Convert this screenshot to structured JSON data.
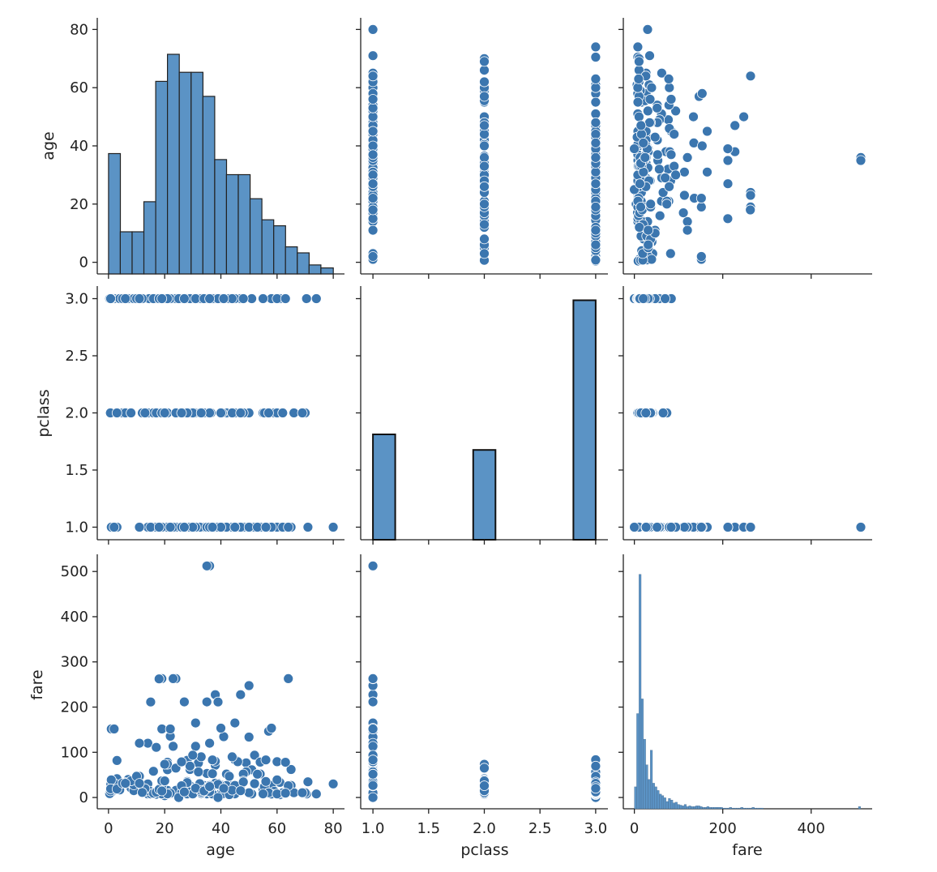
{
  "chart_data": {
    "type": "pairplot",
    "title": "",
    "variables": [
      "age",
      "pclass",
      "fare"
    ],
    "marker_color": "#3b76af",
    "hist_fill": "#5b93c5",
    "hist_edge": "#222222",
    "axes": {
      "age": {
        "label": "age",
        "range": [
          -4,
          84
        ],
        "ticks": [
          0,
          20,
          40,
          60,
          80
        ],
        "tick_labels": [
          "0",
          "20",
          "40",
          "60",
          "80"
        ]
      },
      "pclass": {
        "label": "pclass",
        "range": [
          0.89,
          3.11
        ],
        "ticks": [
          1.0,
          1.5,
          2.0,
          2.5,
          3.0
        ],
        "tick_labels": [
          "1.0",
          "1.5",
          "2.0",
          "2.5",
          "3.0"
        ]
      },
      "fare": {
        "label": "fare",
        "range": [
          -25,
          538
        ],
        "ticks": [
          0,
          100,
          200,
          300,
          400,
          500
        ],
        "tick_labels": [
          "0",
          "100",
          "200",
          "300",
          "400",
          "500"
        ],
        "x_ticks": [
          0,
          200,
          400
        ],
        "x_tick_labels": [
          "0",
          "200",
          "400"
        ]
      }
    },
    "hist_age": {
      "bin_edges": [
        0,
        4.2,
        8.4,
        12.6,
        16.8,
        21,
        25.2,
        29.4,
        33.6,
        37.8,
        42,
        46.2,
        50.4,
        54.6,
        58.8,
        63,
        67.2,
        71.4,
        75.6,
        80
      ],
      "counts": [
        40,
        14,
        14,
        24,
        64,
        73,
        67,
        67,
        59,
        38,
        33,
        33,
        25,
        18,
        16,
        9,
        7,
        3,
        2
      ],
      "count_max": 80
    },
    "hist_pclass": {
      "bins": [
        [
          1.0,
          1.2
        ],
        [
          1.9,
          2.1
        ],
        [
          2.8,
          3.0
        ]
      ],
      "counts": [
        216,
        184,
        491
      ],
      "count_max": 520
    },
    "hist_fare": {
      "bin_width": 5.12,
      "counts": [
        30,
        130,
        320,
        150,
        95,
        60,
        40,
        80,
        35,
        30,
        25,
        20,
        18,
        15,
        10,
        14,
        12,
        8,
        9,
        6,
        5,
        4,
        6,
        3,
        4,
        3,
        3,
        4,
        4,
        3,
        2,
        2,
        3,
        2,
        2,
        2,
        2,
        2,
        2,
        1,
        1,
        1,
        2,
        1,
        1,
        1,
        1,
        2,
        1,
        1,
        1,
        1,
        2,
        1,
        1,
        1,
        1,
        0,
        0,
        0,
        0,
        0,
        0,
        0,
        0,
        0,
        0,
        0,
        0,
        0,
        0,
        0,
        0,
        0,
        0,
        0,
        0,
        0,
        0,
        0,
        0,
        0,
        0,
        0,
        0,
        0,
        0,
        0,
        0,
        0,
        0,
        0,
        0,
        0,
        0,
        0,
        0,
        0,
        0,
        3
      ],
      "count_max": 330
    },
    "points": [
      [
        22,
        3,
        7.25
      ],
      [
        38,
        1,
        71.28
      ],
      [
        26,
        3,
        7.93
      ],
      [
        35,
        1,
        53.1
      ],
      [
        35,
        3,
        8.05
      ],
      [
        54,
        1,
        51.86
      ],
      [
        2,
        3,
        21.08
      ],
      [
        27,
        3,
        11.13
      ],
      [
        14,
        2,
        30.07
      ],
      [
        4,
        3,
        16.7
      ],
      [
        58,
        1,
        26.55
      ],
      [
        20,
        3,
        8.05
      ],
      [
        39,
        3,
        31.28
      ],
      [
        14,
        3,
        7.85
      ],
      [
        55,
        2,
        16
      ],
      [
        2,
        3,
        29.13
      ],
      [
        31,
        2,
        13
      ],
      [
        35,
        2,
        26
      ],
      [
        34,
        2,
        13
      ],
      [
        15,
        3,
        8.03
      ],
      [
        28,
        1,
        35.5
      ],
      [
        8,
        3,
        21.08
      ],
      [
        38,
        3,
        31.39
      ],
      [
        19,
        1,
        263
      ],
      [
        40,
        1,
        27.72
      ],
      [
        66,
        2,
        10.5
      ],
      [
        28,
        1,
        82.17
      ],
      [
        42,
        1,
        52
      ],
      [
        21,
        3,
        7.8
      ],
      [
        18,
        2,
        11.5
      ],
      [
        14,
        1,
        120
      ],
      [
        40,
        3,
        9.47
      ],
      [
        27,
        2,
        10.5
      ],
      [
        3,
        2,
        41.58
      ],
      [
        19,
        3,
        7.88
      ],
      [
        18,
        3,
        17.8
      ],
      [
        7,
        3,
        39.69
      ],
      [
        21,
        1,
        77.29
      ],
      [
        49,
        1,
        76.73
      ],
      [
        29,
        1,
        61.98
      ],
      [
        65,
        1,
        61.98
      ],
      [
        21,
        1,
        77.96
      ],
      [
        28.5,
        3,
        7.23
      ],
      [
        5,
        2,
        27.75
      ],
      [
        11,
        3,
        46.9
      ],
      [
        22,
        3,
        7.23
      ],
      [
        38,
        1,
        80
      ],
      [
        45,
        3,
        83.48
      ],
      [
        4,
        3,
        27.9
      ],
      [
        29,
        3,
        15.25
      ],
      [
        19,
        3,
        8.16
      ],
      [
        17,
        3,
        8.66
      ],
      [
        26,
        2,
        10.5
      ],
      [
        32,
        1,
        76.29
      ],
      [
        16,
        3,
        9.22
      ],
      [
        21,
        2,
        15.5
      ],
      [
        26,
        1,
        78.85
      ],
      [
        32,
        3,
        56.5
      ],
      [
        25,
        3,
        7.65
      ],
      [
        0.83,
        2,
        29
      ],
      [
        30,
        3,
        12.48
      ],
      [
        22,
        1,
        135.63
      ],
      [
        29,
        2,
        26
      ],
      [
        28,
        3,
        7.75
      ],
      [
        17,
        3,
        7.23
      ],
      [
        33,
        1,
        90
      ],
      [
        16,
        2,
        10.5
      ],
      [
        23,
        3,
        7.25
      ],
      [
        24,
        2,
        13
      ],
      [
        46,
        1,
        79.2
      ],
      [
        59,
        2,
        13.5
      ],
      [
        71,
        1,
        34.65
      ],
      [
        23,
        1,
        113.28
      ],
      [
        34,
        1,
        26.55
      ],
      [
        34,
        2,
        13
      ],
      [
        28,
        3,
        7.9
      ],
      [
        21,
        1,
        61.38
      ],
      [
        33,
        3,
        8.05
      ],
      [
        37,
        1,
        52.55
      ],
      [
        28,
        3,
        7.75
      ],
      [
        21,
        3,
        8.05
      ],
      [
        38,
        1,
        227.53
      ],
      [
        47,
        1,
        227.53
      ],
      [
        14.5,
        3,
        14.45
      ],
      [
        22,
        3,
        7.8
      ],
      [
        20,
        3,
        4.01
      ],
      [
        17,
        3,
        7.05
      ],
      [
        21,
        3,
        7.75
      ],
      [
        70.5,
        3,
        7.75
      ],
      [
        29,
        2,
        26
      ],
      [
        24,
        1,
        263
      ],
      [
        2,
        3,
        31.28
      ],
      [
        21,
        2,
        73.5
      ],
      [
        32.5,
        2,
        30.07
      ],
      [
        32.5,
        1,
        30.5
      ],
      [
        54,
        1,
        77.29
      ],
      [
        12,
        2,
        11.24
      ],
      [
        24,
        3,
        7.14
      ],
      [
        45,
        2,
        13.5
      ],
      [
        33,
        3,
        9.5
      ],
      [
        20,
        2,
        73.5
      ],
      [
        47,
        3,
        14.5
      ],
      [
        29,
        2,
        21
      ],
      [
        25,
        3,
        7.75
      ],
      [
        23,
        3,
        8.05
      ],
      [
        19,
        1,
        151.55
      ],
      [
        37,
        3,
        7.9
      ],
      [
        16,
        3,
        9.5
      ],
      [
        24,
        2,
        14.5
      ],
      [
        22,
        3,
        7.75
      ],
      [
        24,
        3,
        15.85
      ],
      [
        19,
        3,
        7.9
      ],
      [
        18,
        1,
        262.38
      ],
      [
        19,
        2,
        26
      ],
      [
        27,
        1,
        211.5
      ],
      [
        9,
        3,
        20.58
      ],
      [
        36.5,
        2,
        23
      ],
      [
        42,
        2,
        13
      ],
      [
        51,
        3,
        7.74
      ],
      [
        22,
        3,
        9.5
      ],
      [
        55.5,
        2,
        24
      ],
      [
        40.5,
        2,
        7.75
      ],
      [
        51,
        1,
        61.38
      ],
      [
        16,
        1,
        57.98
      ],
      [
        30,
        2,
        13
      ],
      [
        44,
        2,
        26
      ],
      [
        40,
        3,
        27.9
      ],
      [
        26,
        3,
        10.46
      ],
      [
        17,
        2,
        12
      ],
      [
        1,
        3,
        11.13
      ],
      [
        9,
        3,
        15.25
      ],
      [
        45,
        3,
        8.05
      ],
      [
        28,
        3,
        14.5
      ],
      [
        61,
        1,
        33.5
      ],
      [
        4,
        3,
        16.7
      ],
      [
        1,
        2,
        39
      ],
      [
        21,
        3,
        8.05
      ],
      [
        56,
        1,
        35.5
      ],
      [
        18,
        3,
        17.8
      ],
      [
        50,
        1,
        247.52
      ],
      [
        30,
        3,
        7.9
      ],
      [
        36,
        1,
        512.33
      ],
      [
        35,
        1,
        512.33
      ],
      [
        36,
        2,
        13
      ],
      [
        60,
        1,
        79.2
      ],
      [
        9,
        3,
        27.9
      ],
      [
        44,
        1,
        90
      ],
      [
        17,
        1,
        110.88
      ],
      [
        49,
        1,
        56.93
      ],
      [
        64,
        1,
        263
      ],
      [
        65,
        1,
        26.55
      ],
      [
        58,
        3,
        7.65
      ],
      [
        50,
        2,
        10.5
      ],
      [
        63,
        1,
        77.96
      ],
      [
        62,
        1,
        10.5
      ],
      [
        80,
        1,
        30
      ],
      [
        74,
        3,
        7.78
      ],
      [
        48,
        1,
        52
      ],
      [
        52,
        1,
        93.5
      ],
      [
        11,
        1,
        120
      ],
      [
        24,
        2,
        65
      ],
      [
        36,
        1,
        26.39
      ],
      [
        43,
        3,
        6.45
      ],
      [
        33,
        2,
        12.28
      ],
      [
        60,
        2,
        39
      ],
      [
        47,
        1,
        25.59
      ],
      [
        41,
        1,
        134.5
      ],
      [
        19,
        2,
        36.75
      ],
      [
        31,
        1,
        164.87
      ],
      [
        42,
        1,
        26.55
      ],
      [
        48,
        2,
        36.75
      ],
      [
        39,
        1,
        211.34
      ],
      [
        52,
        1,
        30.5
      ],
      [
        28,
        2,
        33
      ],
      [
        57,
        1,
        146.52
      ],
      [
        54,
        1,
        78.27
      ],
      [
        25,
        3,
        0
      ],
      [
        39,
        1,
        0
      ],
      [
        58,
        1,
        153.46
      ],
      [
        45,
        1,
        164.87
      ],
      [
        50,
        1,
        133.65
      ],
      [
        35,
        1,
        211.5
      ],
      [
        29,
        3,
        69.55
      ],
      [
        6,
        2,
        33
      ],
      [
        57,
        2,
        10.5
      ],
      [
        70,
        2,
        10.5
      ],
      [
        66,
        2,
        10.5
      ],
      [
        62,
        2,
        10.5
      ],
      [
        61,
        3,
        6.24
      ],
      [
        64,
        1,
        26
      ],
      [
        55,
        3,
        8.05
      ],
      [
        69,
        2,
        10.5
      ],
      [
        62,
        2,
        10.5
      ],
      [
        0.42,
        3,
        8.52
      ],
      [
        0.67,
        2,
        14.5
      ],
      [
        0.75,
        3,
        19.26
      ],
      [
        0.92,
        1,
        151.55
      ],
      [
        1,
        1,
        151.55
      ],
      [
        3,
        1,
        81.86
      ],
      [
        3,
        2,
        18.75
      ],
      [
        43,
        3,
        46.9
      ],
      [
        5,
        3,
        31.39
      ],
      [
        8,
        2,
        36.75
      ],
      [
        10,
        3,
        46.9
      ],
      [
        13,
        2,
        19.5
      ],
      [
        15,
        1,
        211.34
      ],
      [
        18,
        1,
        262.38
      ],
      [
        23,
        1,
        263
      ],
      [
        36,
        1,
        120
      ],
      [
        22,
        1,
        151.55
      ],
      [
        40,
        1,
        153.46
      ],
      [
        37,
        1,
        83.16
      ],
      [
        26,
        1,
        78.85
      ],
      [
        31,
        1,
        113.28
      ],
      [
        30,
        1,
        93.5
      ],
      [
        27,
        1,
        211.5
      ],
      [
        45,
        1,
        26.55
      ],
      [
        20,
        2,
        36.75
      ],
      [
        48,
        3,
        34.38
      ],
      [
        40,
        2,
        26
      ],
      [
        60,
        3,
        7.75
      ],
      [
        63,
        3,
        9.59
      ],
      [
        53,
        1,
        51.48
      ],
      [
        56,
        1,
        83.16
      ],
      [
        35,
        3,
        20.25
      ],
      [
        44,
        3,
        16.1
      ],
      [
        39,
        3,
        29.13
      ],
      [
        47,
        2,
        15
      ],
      [
        26,
        2,
        26
      ],
      [
        33,
        3,
        15.85
      ],
      [
        12,
        3,
        11.24
      ],
      [
        11,
        3,
        31.28
      ],
      [
        6,
        3,
        31.28
      ],
      [
        2,
        1,
        151.55
      ],
      [
        31,
        3,
        20.53
      ],
      [
        34,
        3,
        14.4
      ],
      [
        19,
        3,
        14.5
      ],
      [
        27,
        3,
        12.35
      ],
      [
        36,
        3,
        24.15
      ],
      [
        41,
        3,
        20.21
      ]
    ]
  }
}
